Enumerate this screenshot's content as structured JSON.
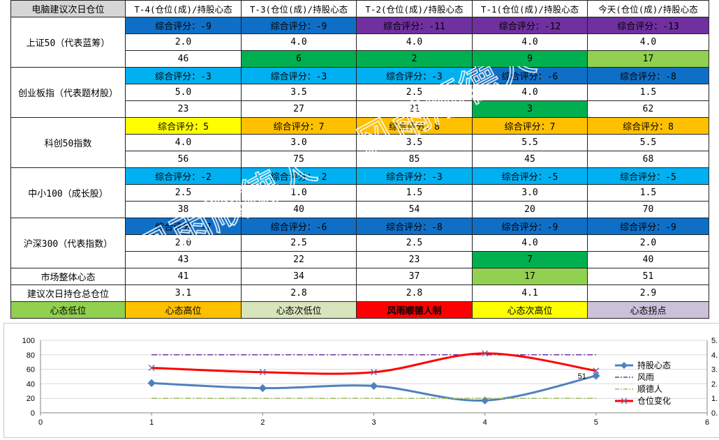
{
  "table": {
    "corner": "电脑建议次日仓位",
    "headers": [
      "T-4(仓位(成)/持股心态",
      "T-3(仓位(成)/持股心态",
      "T-2(仓位(成)/持股心态",
      "T-1(仓位(成)/持股心态",
      "今天(仓位(成)/持股心态"
    ],
    "groups": [
      {
        "label": "上证50（代表蓝筹）",
        "scores": [
          "综合评分：-9",
          "综合评分：-9",
          "综合评分：-11",
          "综合评分：-12",
          "综合评分：-13"
        ],
        "score_colors": [
          "#0f6fc6",
          "#0f6fc6",
          "#7030a0",
          "#7030a0",
          "#7030a0"
        ],
        "positions": [
          "2.0",
          "4.0",
          "4.0",
          "4.0",
          "4.0"
        ],
        "moods": [
          "46",
          "6",
          "2",
          "9",
          "17"
        ],
        "mood_colors": [
          "",
          "#00b050",
          "#00b050",
          "#00b050",
          "#92d050"
        ]
      },
      {
        "label": "创业板指（代表题材股）",
        "scores": [
          "综合评分：-3",
          "综合评分：-3",
          "综合评分：-3",
          "综合评分：-6",
          "综合评分：-8"
        ],
        "score_colors": [
          "#00b0f0",
          "#00b0f0",
          "#00b0f0",
          "#0f6fc6",
          "#0f6fc6"
        ],
        "positions": [
          "5.0",
          "3.5",
          "2.5",
          "4.0",
          "1.5"
        ],
        "moods": [
          "23",
          "27",
          "21",
          "3",
          "62"
        ],
        "mood_colors": [
          "",
          "",
          "",
          "#00b050",
          ""
        ]
      },
      {
        "label": "科创50指数",
        "scores": [
          "综合评分：5",
          "综合评分：7",
          "综合评分：8",
          "综合评分：7",
          "综合评分：8"
        ],
        "score_colors": [
          "#ffff00",
          "#ffc000",
          "#ffc000",
          "#ffc000",
          "#ffc000"
        ],
        "positions": [
          "4.0",
          "3.0",
          "3.5",
          "5.5",
          "5.5"
        ],
        "moods": [
          "56",
          "75",
          "85",
          "45",
          "68"
        ],
        "mood_colors": [
          "",
          "",
          "",
          "",
          ""
        ]
      },
      {
        "label": "中小100（成长股）",
        "scores": [
          "综合评分：-2",
          "综合评分：-2",
          "综合评分：-3",
          "综合评分：-5",
          "综合评分：-5"
        ],
        "score_colors": [
          "#00b0f0",
          "#00b0f0",
          "#00b0f0",
          "#00b0f0",
          "#00b0f0"
        ],
        "positions": [
          "2.5",
          "1.0",
          "1.5",
          "3.0",
          "1.5"
        ],
        "moods": [
          "38",
          "40",
          "54",
          "20",
          "70"
        ],
        "mood_colors": [
          "",
          "",
          "",
          "",
          ""
        ]
      },
      {
        "label": "沪深300（代表指数）",
        "scores": [
          "综合评分：-7",
          "综合评分：-6",
          "综合评分：-8",
          "综合评分：-9",
          "综合评分：-9"
        ],
        "score_colors": [
          "#0f6fc6",
          "#0f6fc6",
          "#0f6fc6",
          "#0f6fc6",
          "#0f6fc6"
        ],
        "positions": [
          "2.0",
          "2.5",
          "2.5",
          "4.0",
          "2.0"
        ],
        "moods": [
          "43",
          "22",
          "23",
          "7",
          "40"
        ],
        "mood_colors": [
          "",
          "",
          "",
          "#00b050",
          ""
        ]
      }
    ],
    "market_label": "市场整体心态",
    "market_values": [
      "41",
      "34",
      "37",
      "17",
      "51"
    ],
    "market_colors": [
      "",
      "",
      "",
      "#92d050",
      ""
    ],
    "suggest_label": "建议次日持仓总仓位",
    "suggest_values": [
      "3.1",
      "2.8",
      "2.8",
      "4.1",
      "2.9"
    ],
    "legend": [
      {
        "label": "心态低位",
        "color": "#92d050"
      },
      {
        "label": "心态高位",
        "color": "#ffc000"
      },
      {
        "label": "心态次低位",
        "color": "#d8e4bc"
      },
      {
        "label": "风雨顺德人制",
        "color": "#ff0000"
      },
      {
        "label": "心态次高位",
        "color": "#ffff00"
      },
      {
        "label": "心态拐点",
        "color": "#ccc0da"
      }
    ],
    "watermark": "风雨顺德人"
  },
  "chart_data": {
    "type": "line",
    "x": [
      1,
      2,
      3,
      4,
      5
    ],
    "xlim": [
      0,
      6
    ],
    "xticks": [
      "0",
      "1",
      "2",
      "3",
      "4",
      "5",
      "6"
    ],
    "ylim_left": [
      0,
      100
    ],
    "yticks_left": [
      "0",
      "20",
      "40",
      "60",
      "80",
      "100"
    ],
    "ylim_right": [
      0,
      5
    ],
    "yticks_right": [
      "0.",
      "1.",
      "2.",
      "3.",
      "4.",
      "5."
    ],
    "grid": true,
    "legend_position": "right",
    "series": [
      {
        "name": "持股心态",
        "axis": "left",
        "values": [
          41,
          34,
          37,
          17,
          51
        ],
        "color": "#4f81bd",
        "style": "smooth-diamond"
      },
      {
        "name": "风雨",
        "axis": "left",
        "values": [
          80,
          80,
          80,
          80,
          80
        ],
        "color": "#7030a0",
        "style": "dash-dot"
      },
      {
        "name": "顺德人",
        "axis": "left",
        "values": [
          20,
          20,
          20,
          20,
          20
        ],
        "color": "#9bbb59",
        "style": "dash-dot"
      },
      {
        "name": "仓位变化",
        "axis": "right",
        "values": [
          3.1,
          2.8,
          2.8,
          4.1,
          2.9
        ],
        "color": "#ff0000",
        "style": "smooth-x"
      }
    ],
    "annotations": [
      {
        "text": "51"
      }
    ]
  }
}
